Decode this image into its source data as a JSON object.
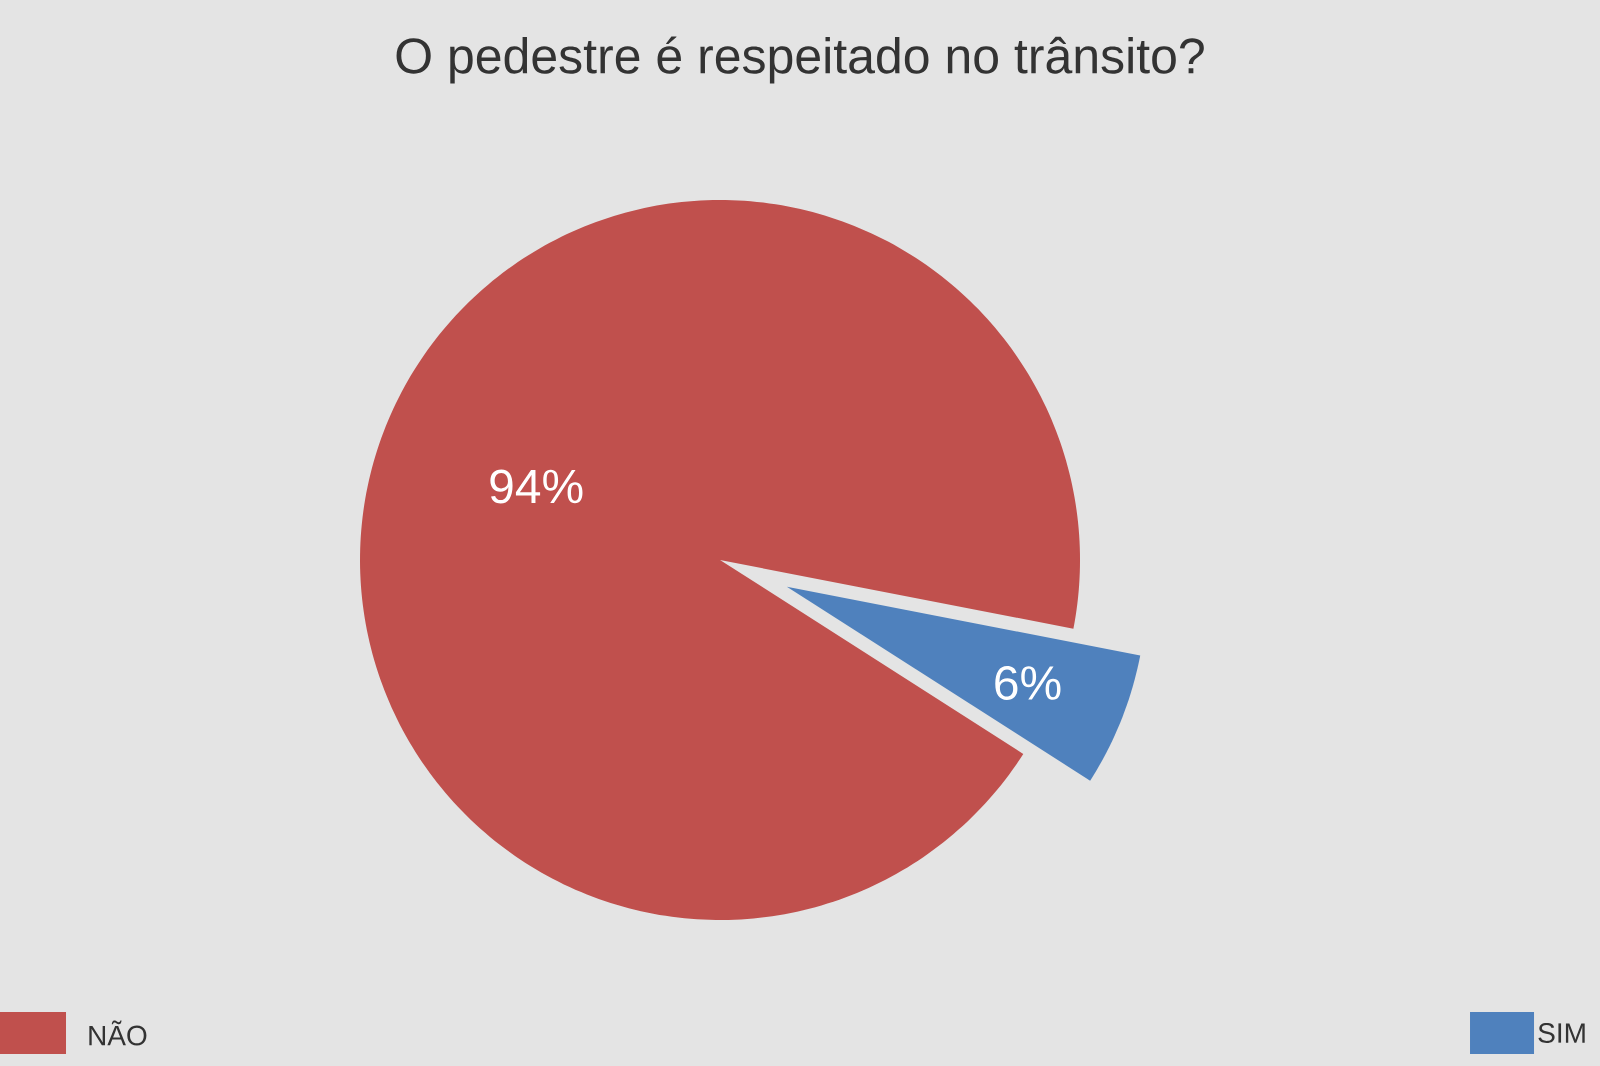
{
  "chart_data": {
    "type": "pie",
    "title": "O pedestre é respeitado no trânsito?",
    "categories": [
      "NÃO",
      "SIM"
    ],
    "values": [
      94,
      6
    ],
    "colors": [
      "#c0504d",
      "#4f81bd"
    ],
    "value_labels": [
      "94%",
      "6%"
    ],
    "legend": "bottom"
  }
}
